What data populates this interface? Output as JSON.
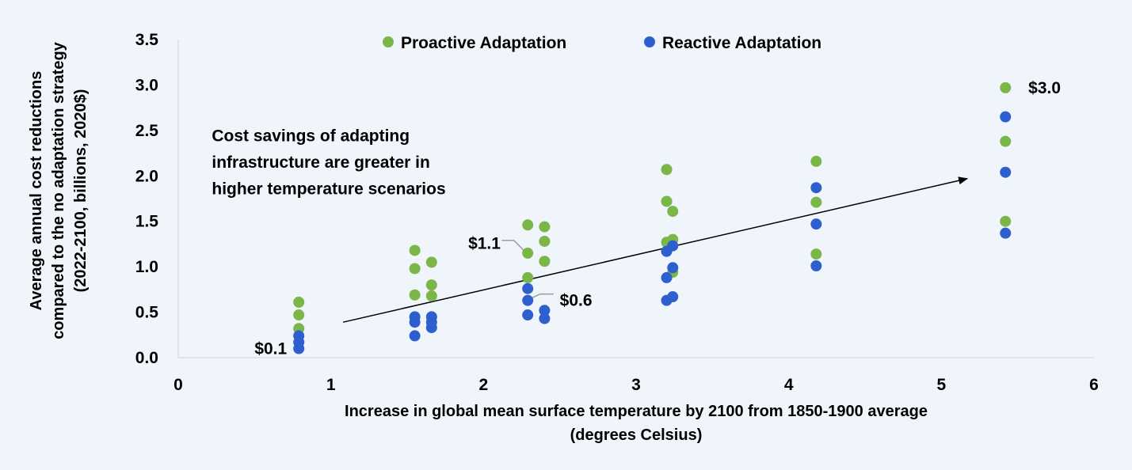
{
  "chart_data": {
    "type": "scatter",
    "xlabel": [
      "Increase in global mean surface temperature by 2100 from 1850-1900 average",
      "(degrees Celsius)"
    ],
    "ylabel": [
      "Average annual cost reductions",
      "compared to the no adaptation strategy",
      "(2022-2100, billions, 2020$)"
    ],
    "xlim": [
      0,
      6
    ],
    "ylim": [
      0,
      3.5
    ],
    "x_ticks": [
      0,
      1,
      2,
      3,
      4,
      5,
      6
    ],
    "x_tick_labels": [
      "0",
      "1",
      "2",
      "3",
      "4",
      "5",
      "6"
    ],
    "y_ticks": [
      0,
      0.5,
      1,
      1.5,
      2,
      2.5,
      3,
      3.5
    ],
    "y_tick_labels": [
      "0.0",
      "0.5",
      "1.0",
      "1.5",
      "2.0",
      "2.5",
      "3.0",
      "3.5"
    ],
    "grid": false,
    "legend_position": "top-center",
    "series": [
      {
        "name": "Proactive Adaptation",
        "color": "#7ab648",
        "points": [
          [
            0.79,
            0.61
          ],
          [
            0.79,
            0.47
          ],
          [
            0.79,
            0.32
          ],
          [
            1.55,
            1.18
          ],
          [
            1.55,
            0.98
          ],
          [
            1.55,
            0.69
          ],
          [
            1.66,
            1.05
          ],
          [
            1.66,
            0.8
          ],
          [
            1.66,
            0.68
          ],
          [
            2.29,
            1.46
          ],
          [
            2.29,
            1.15
          ],
          [
            2.29,
            0.88
          ],
          [
            2.4,
            1.44
          ],
          [
            2.4,
            1.28
          ],
          [
            2.4,
            1.06
          ],
          [
            3.2,
            2.07
          ],
          [
            3.2,
            1.72
          ],
          [
            3.2,
            1.27
          ],
          [
            3.24,
            1.61
          ],
          [
            3.24,
            1.3
          ],
          [
            3.24,
            0.94
          ],
          [
            4.18,
            2.16
          ],
          [
            4.18,
            1.71
          ],
          [
            4.18,
            1.14
          ],
          [
            5.42,
            2.97
          ],
          [
            5.42,
            2.38
          ],
          [
            5.42,
            1.5
          ]
        ]
      },
      {
        "name": "Reactive Adaptation",
        "color": "#2e5fce",
        "points": [
          [
            0.79,
            0.24
          ],
          [
            0.79,
            0.17
          ],
          [
            0.79,
            0.1
          ],
          [
            1.55,
            0.45
          ],
          [
            1.55,
            0.39
          ],
          [
            1.55,
            0.24
          ],
          [
            1.66,
            0.45
          ],
          [
            1.66,
            0.39
          ],
          [
            1.66,
            0.33
          ],
          [
            2.29,
            0.76
          ],
          [
            2.29,
            0.63
          ],
          [
            2.29,
            0.47
          ],
          [
            2.4,
            0.52
          ],
          [
            2.4,
            0.43
          ],
          [
            3.2,
            1.17
          ],
          [
            3.2,
            0.88
          ],
          [
            3.2,
            0.63
          ],
          [
            3.24,
            1.23
          ],
          [
            3.24,
            0.99
          ],
          [
            3.24,
            0.67
          ],
          [
            4.18,
            1.87
          ],
          [
            4.18,
            1.47
          ],
          [
            4.18,
            1.01
          ],
          [
            5.42,
            2.65
          ],
          [
            5.42,
            2.04
          ],
          [
            5.42,
            1.37
          ]
        ]
      }
    ],
    "annotations": [
      {
        "text": "Cost savings of adapting",
        "x": 0.22,
        "y": 2.38
      },
      {
        "text": "infrastructure are greater in",
        "x": 0.22,
        "y": 2.09
      },
      {
        "text": "higher temperature scenarios",
        "x": 0.22,
        "y": 1.8
      }
    ],
    "callouts": [
      {
        "text": "$0.1",
        "x": 0.5,
        "y": 0.1,
        "anchor": "start"
      },
      {
        "text": "$1.1",
        "x": 1.9,
        "y": 1.26,
        "anchor": "start",
        "leader": [
          [
            2.12,
            1.29
          ],
          [
            2.2,
            1.29
          ],
          [
            2.27,
            1.17
          ]
        ]
      },
      {
        "text": "$0.6",
        "x": 2.5,
        "y": 0.63,
        "anchor": "start",
        "leader": [
          [
            2.46,
            0.7
          ],
          [
            2.37,
            0.7
          ],
          [
            2.31,
            0.65
          ]
        ]
      },
      {
        "text": "$3.0",
        "x": 5.57,
        "y": 2.97,
        "anchor": "start"
      }
    ],
    "trend_arrow": {
      "from": [
        1.08,
        0.39
      ],
      "to": [
        5.17,
        1.97
      ]
    }
  }
}
